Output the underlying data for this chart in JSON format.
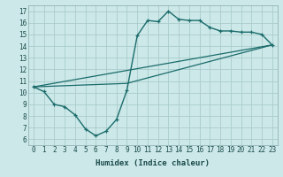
{
  "xlabel": "Humidex (Indice chaleur)",
  "ylabel": "",
  "bg_color": "#cce8e8",
  "grid_color": "#aacccc",
  "line_color": "#1a6b6b",
  "xlim": [
    -0.5,
    23.5
  ],
  "ylim": [
    5.5,
    17.5
  ],
  "xticks": [
    0,
    1,
    2,
    3,
    4,
    5,
    6,
    7,
    8,
    9,
    10,
    11,
    12,
    13,
    14,
    15,
    16,
    17,
    18,
    19,
    20,
    21,
    22,
    23
  ],
  "yticks": [
    6,
    7,
    8,
    9,
    10,
    11,
    12,
    13,
    14,
    15,
    16,
    17
  ],
  "curve1_x": [
    0,
    1,
    2,
    3,
    4,
    5,
    6,
    7,
    8,
    9,
    10,
    11,
    12,
    13,
    14,
    15,
    16,
    17,
    18,
    19,
    20,
    21,
    22,
    23
  ],
  "curve1_y": [
    10.5,
    10.1,
    9.0,
    8.8,
    8.1,
    6.9,
    6.3,
    6.7,
    7.7,
    10.2,
    14.9,
    16.2,
    16.1,
    17.0,
    16.3,
    16.2,
    16.2,
    15.6,
    15.3,
    15.3,
    15.2,
    15.2,
    15.0,
    14.1
  ],
  "line1_x": [
    0,
    23
  ],
  "line1_y": [
    10.5,
    14.1
  ],
  "line2_x": [
    0,
    9,
    23
  ],
  "line2_y": [
    10.5,
    10.8,
    14.1
  ]
}
